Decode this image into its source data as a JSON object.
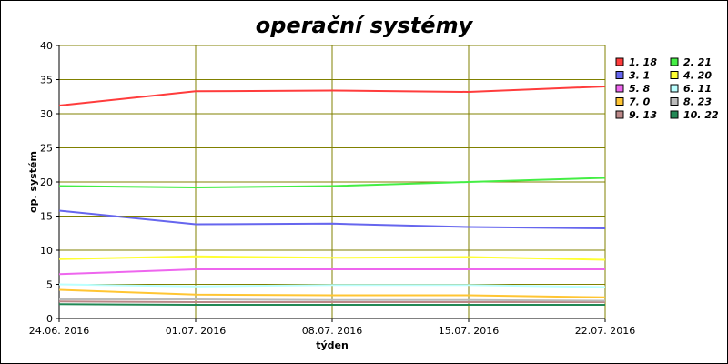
{
  "chart_data": {
    "type": "line",
    "title": "operační systémy",
    "xlabel": "týden",
    "ylabel": "op. systém",
    "ylim": [
      0,
      40
    ],
    "yticks": [
      "0",
      "5",
      "10",
      "15",
      "20",
      "25",
      "30",
      "35",
      "40"
    ],
    "x": [
      "24.06. 2016",
      "01.07. 2016",
      "08.07. 2016",
      "15.07. 2016",
      "22.07. 2016"
    ],
    "grid": true,
    "legend_position": "right",
    "colors": {
      "background": "#ffffff",
      "grid": "#808000",
      "axis": "#000000"
    },
    "series": [
      {
        "name": "1. 18",
        "color": "#ff3c3c",
        "values": [
          31.2,
          33.3,
          33.4,
          33.2,
          34.0
        ]
      },
      {
        "name": "2. 21",
        "color": "#44ee44",
        "values": [
          19.4,
          19.2,
          19.4,
          20.0,
          20.6
        ]
      },
      {
        "name": "3. 1",
        "color": "#6666ee",
        "values": [
          15.8,
          13.8,
          13.9,
          13.4,
          13.2
        ]
      },
      {
        "name": "4. 20",
        "color": "#ffff33",
        "values": [
          8.7,
          9.1,
          8.9,
          9.0,
          8.6
        ]
      },
      {
        "name": "5. 8",
        "color": "#ee66ee",
        "values": [
          6.5,
          7.2,
          7.2,
          7.2,
          7.2
        ]
      },
      {
        "name": "6. 11",
        "color": "#bbffff",
        "values": [
          5.0,
          4.7,
          4.9,
          4.9,
          4.6
        ]
      },
      {
        "name": "7. 0",
        "color": "#ffc533",
        "values": [
          4.2,
          3.5,
          3.4,
          3.4,
          3.1
        ]
      },
      {
        "name": "8. 23",
        "color": "#bbbbbb",
        "values": [
          2.8,
          2.8,
          2.7,
          2.7,
          2.6
        ]
      },
      {
        "name": "9. 13",
        "color": "#bb8888",
        "values": [
          2.5,
          2.4,
          2.4,
          2.4,
          2.4
        ]
      },
      {
        "name": "10. 22",
        "color": "#228855",
        "values": [
          2.1,
          2.0,
          2.0,
          2.0,
          2.0
        ]
      }
    ]
  }
}
